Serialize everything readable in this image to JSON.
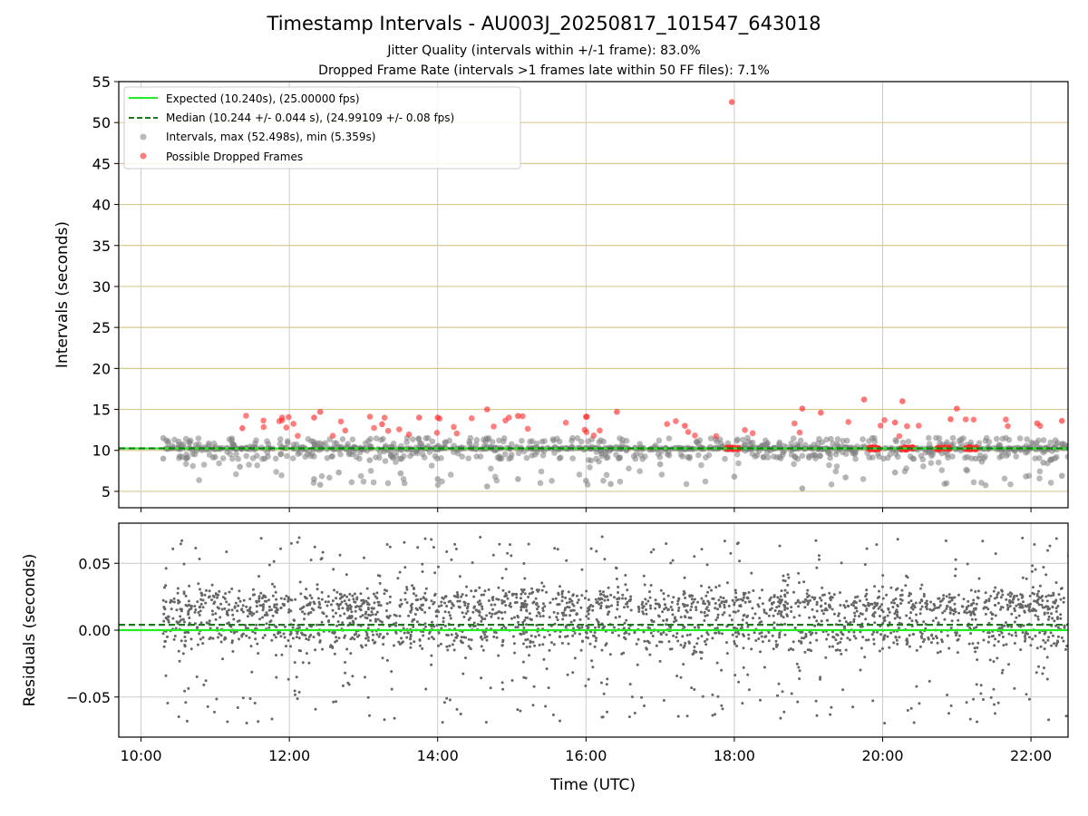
{
  "title": "Timestamp Intervals - AU003J_20250817_101547_643018",
  "subtitle1": "Jitter Quality (intervals within +/-1 frame): 83.0%",
  "subtitle2": "Dropped Frame Rate (intervals >1 frames late within 50 FF files): 7.1%",
  "colors": {
    "expected": "#22ee22",
    "median": "#1a7a1a",
    "intervals": "#7f7f7f",
    "dropped": "#ff2a2a",
    "hgrid_top": "#d8c890",
    "grid": "#cccccc"
  },
  "chart_data": [
    {
      "type": "scatter",
      "ylabel": "Intervals (seconds)",
      "ylim": [
        3,
        55
      ],
      "xlim_hours": [
        9.7,
        22.5
      ],
      "yticks": [
        "5",
        "10",
        "15",
        "20",
        "25",
        "30",
        "35",
        "40",
        "45",
        "50",
        "55"
      ],
      "ytick_values": [
        5,
        10,
        15,
        20,
        25,
        30,
        35,
        40,
        45,
        50,
        55
      ],
      "grid": "on",
      "legend_position": "top-left",
      "legend": [
        "Expected (10.240s), (25.00000 fps)",
        "Median (10.244 +/- 0.044 s), (24.99109 +/- 0.08 fps)",
        "Intervals, max (52.498s), min (5.359s)",
        "Possible Dropped Frames"
      ],
      "expected_value": 10.24,
      "median_value": 10.244,
      "intervals_sample": [
        {
          "t": "10:18",
          "y": 11.5
        },
        {
          "t": "10:18",
          "y": 9.0
        },
        {
          "t": "10:40",
          "y": 11.2
        },
        {
          "t": "11:00",
          "y": 9.2
        },
        {
          "t": "11:20",
          "y": 8.0
        },
        {
          "t": "11:40",
          "y": 9.0
        },
        {
          "t": "12:20",
          "y": 6.5
        },
        {
          "t": "12:25",
          "y": 5.8
        },
        {
          "t": "12:40",
          "y": 7.3
        },
        {
          "t": "13:05",
          "y": 8.8
        },
        {
          "t": "13:30",
          "y": 7.2
        },
        {
          "t": "14:00",
          "y": 6.5
        },
        {
          "t": "14:40",
          "y": 5.6
        },
        {
          "t": "15:05",
          "y": 6.5
        },
        {
          "t": "16:00",
          "y": 6.3
        },
        {
          "t": "16:20",
          "y": 5.9
        },
        {
          "t": "17:00",
          "y": 8.3
        },
        {
          "t": "18:00",
          "y": 6.8
        },
        {
          "t": "18:55",
          "y": 5.36
        },
        {
          "t": "19:30",
          "y": 6.7
        },
        {
          "t": "20:10",
          "y": 7.3
        },
        {
          "t": "21:15",
          "y": 9.0
        },
        {
          "t": "22:10",
          "y": 8.5
        },
        {
          "t": "22:25",
          "y": 6.9
        }
      ],
      "dropped_sample": [
        {
          "t": "11:22",
          "y": 12.7
        },
        {
          "t": "12:25",
          "y": 14.7
        },
        {
          "t": "12:20",
          "y": 14.0
        },
        {
          "t": "13:15",
          "y": 13.2
        },
        {
          "t": "13:45",
          "y": 14.0
        },
        {
          "t": "14:00",
          "y": 14.0
        },
        {
          "t": "14:40",
          "y": 15.0
        },
        {
          "t": "15:05",
          "y": 14.2
        },
        {
          "t": "16:00",
          "y": 14.1
        },
        {
          "t": "16:25",
          "y": 14.7
        },
        {
          "t": "17:20",
          "y": 13.0
        },
        {
          "t": "17:58",
          "y": 52.5
        },
        {
          "t": "18:55",
          "y": 15.1
        },
        {
          "t": "19:10",
          "y": 14.6
        },
        {
          "t": "19:45",
          "y": 16.2
        },
        {
          "t": "20:10",
          "y": 13.4
        },
        {
          "t": "20:16",
          "y": 16.0
        },
        {
          "t": "20:55",
          "y": 13.8
        },
        {
          "t": "21:00",
          "y": 15.1
        },
        {
          "t": "22:05",
          "y": 13.3
        },
        {
          "t": "22:25",
          "y": 13.6
        }
      ]
    },
    {
      "type": "scatter",
      "ylabel": "Residuals (seconds)",
      "xlabel": "Time (UTC)",
      "ylim": [
        -0.08,
        0.08
      ],
      "yticks": [
        "0.05",
        "0.00",
        "−0.05"
      ],
      "ytick_values": [
        0.05,
        0.0,
        -0.05
      ],
      "xticks": [
        "10:00",
        "12:00",
        "14:00",
        "16:00",
        "18:00",
        "20:00",
        "22:00"
      ],
      "xtick_hours": [
        10,
        12,
        14,
        16,
        18,
        20,
        22
      ],
      "expected_value": 0.0,
      "median_value": 0.004,
      "grid": "on"
    }
  ]
}
